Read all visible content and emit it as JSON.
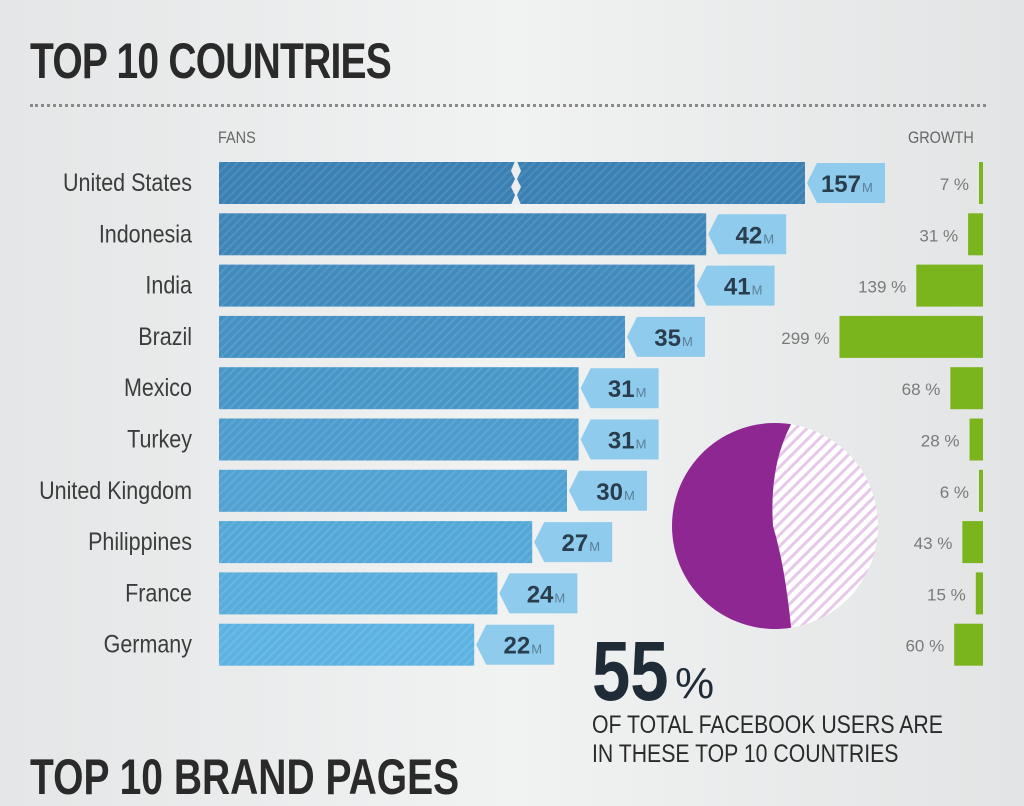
{
  "title": "TOP 10 COUNTRIES",
  "fans_label": "FANS",
  "growth_label": "GROWTH",
  "bottom_title_partial": "TOP 10 BRAND PAGES",
  "colors": {
    "bar_dark": "#3a80b3",
    "bar_light": "#5cb3e2",
    "label_bg": "#8fcbec",
    "growth": "#7ab51d",
    "pie_primary": "#8e2792",
    "pie_secondary": "#e6c8e9"
  },
  "chart_data": {
    "type": "bar",
    "title": "TOP 10 COUNTRIES",
    "unit": "M",
    "categories": [
      "United States",
      "Indonesia",
      "India",
      "Brazil",
      "Mexico",
      "Turkey",
      "United Kingdom",
      "Philippines",
      "France",
      "Germany"
    ],
    "series": [
      {
        "name": "FANS",
        "values": [
          157,
          42,
          41,
          35,
          31,
          31,
          30,
          27,
          24,
          22
        ],
        "axis_break_on_first": true
      },
      {
        "name": "GROWTH",
        "values": [
          7,
          31,
          139,
          299,
          68,
          28,
          6,
          43,
          15,
          60
        ],
        "unit": "%"
      }
    ],
    "pie": {
      "percent": 55,
      "percent_display": "55",
      "percent_sign": "%",
      "caption_line1": "OF TOTAL FACEBOOK USERS ARE",
      "caption_line2": "IN THESE TOP 10 COUNTRIES"
    }
  }
}
